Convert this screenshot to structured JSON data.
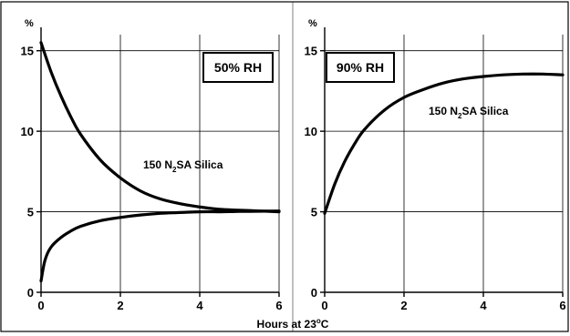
{
  "chart_data": [
    {
      "type": "line",
      "badge": "50% RH",
      "y_unit": "%",
      "annotation": {
        "pre": "150 N",
        "sub": "2",
        "post": "SA Silica"
      },
      "xlim": [
        0,
        6
      ],
      "ylim": [
        0,
        16
      ],
      "x_ticks": [
        "0",
        "2",
        "4",
        "6"
      ],
      "y_ticks": [
        "0",
        "5",
        "10",
        "15"
      ],
      "grid": true,
      "series": [
        {
          "x": [
            0,
            0.25,
            0.5,
            0.75,
            1,
            1.5,
            2,
            2.5,
            3,
            3.5,
            4,
            4.5,
            5,
            5.5,
            6
          ],
          "values": [
            15.5,
            13.7,
            12.2,
            10.9,
            9.8,
            8.2,
            7.1,
            6.3,
            5.8,
            5.5,
            5.3,
            5.15,
            5.1,
            5.05,
            5.0
          ]
        },
        {
          "x": [
            0,
            0.1,
            0.25,
            0.5,
            0.75,
            1,
            1.5,
            2,
            2.5,
            3,
            3.5,
            4,
            4.5,
            5,
            5.5,
            6
          ],
          "values": [
            0.7,
            2.0,
            2.8,
            3.4,
            3.8,
            4.1,
            4.45,
            4.65,
            4.8,
            4.9,
            4.95,
            5.0,
            5.0,
            5.02,
            5.03,
            5.05
          ]
        }
      ]
    },
    {
      "type": "line",
      "badge": "90% RH",
      "y_unit": "%",
      "annotation": {
        "pre": "150 N",
        "sub": "2",
        "post": "SA Silica"
      },
      "xlim": [
        0,
        6
      ],
      "ylim": [
        0,
        16
      ],
      "x_ticks": [
        "0",
        "2",
        "4",
        "6"
      ],
      "y_ticks": [
        "0",
        "5",
        "10",
        "15"
      ],
      "grid": true,
      "series": [
        {
          "x": [
            0,
            0.25,
            0.5,
            0.75,
            1,
            1.5,
            2,
            2.5,
            3,
            3.5,
            4,
            4.5,
            5,
            5.5,
            6
          ],
          "values": [
            4.9,
            6.7,
            8.1,
            9.2,
            10.1,
            11.3,
            12.1,
            12.6,
            13.0,
            13.25,
            13.4,
            13.5,
            13.55,
            13.55,
            13.5
          ]
        }
      ]
    }
  ],
  "xlabel": {
    "pre": "Hours at 23",
    "sup": "o",
    "post": "C"
  }
}
